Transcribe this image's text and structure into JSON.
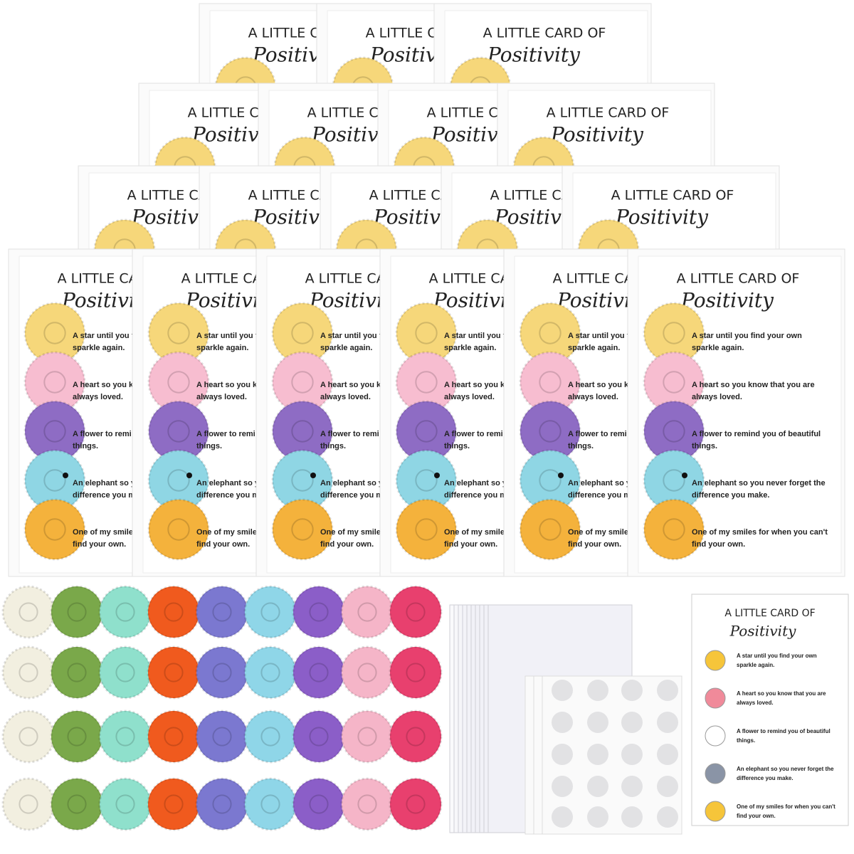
{
  "card": {
    "title": "A LITTLE CARD OF",
    "script": "Positivity",
    "lines": [
      [
        "A star until you find your own",
        "sparkle again."
      ],
      [
        "A heart so you know that you are",
        "always loved."
      ],
      [
        "A flower to remind you of beautiful",
        "things."
      ],
      [
        "An elephant so you never forget the",
        "difference you make."
      ],
      [
        "One of my smiles for when you can't",
        "find your own."
      ]
    ]
  }
}
